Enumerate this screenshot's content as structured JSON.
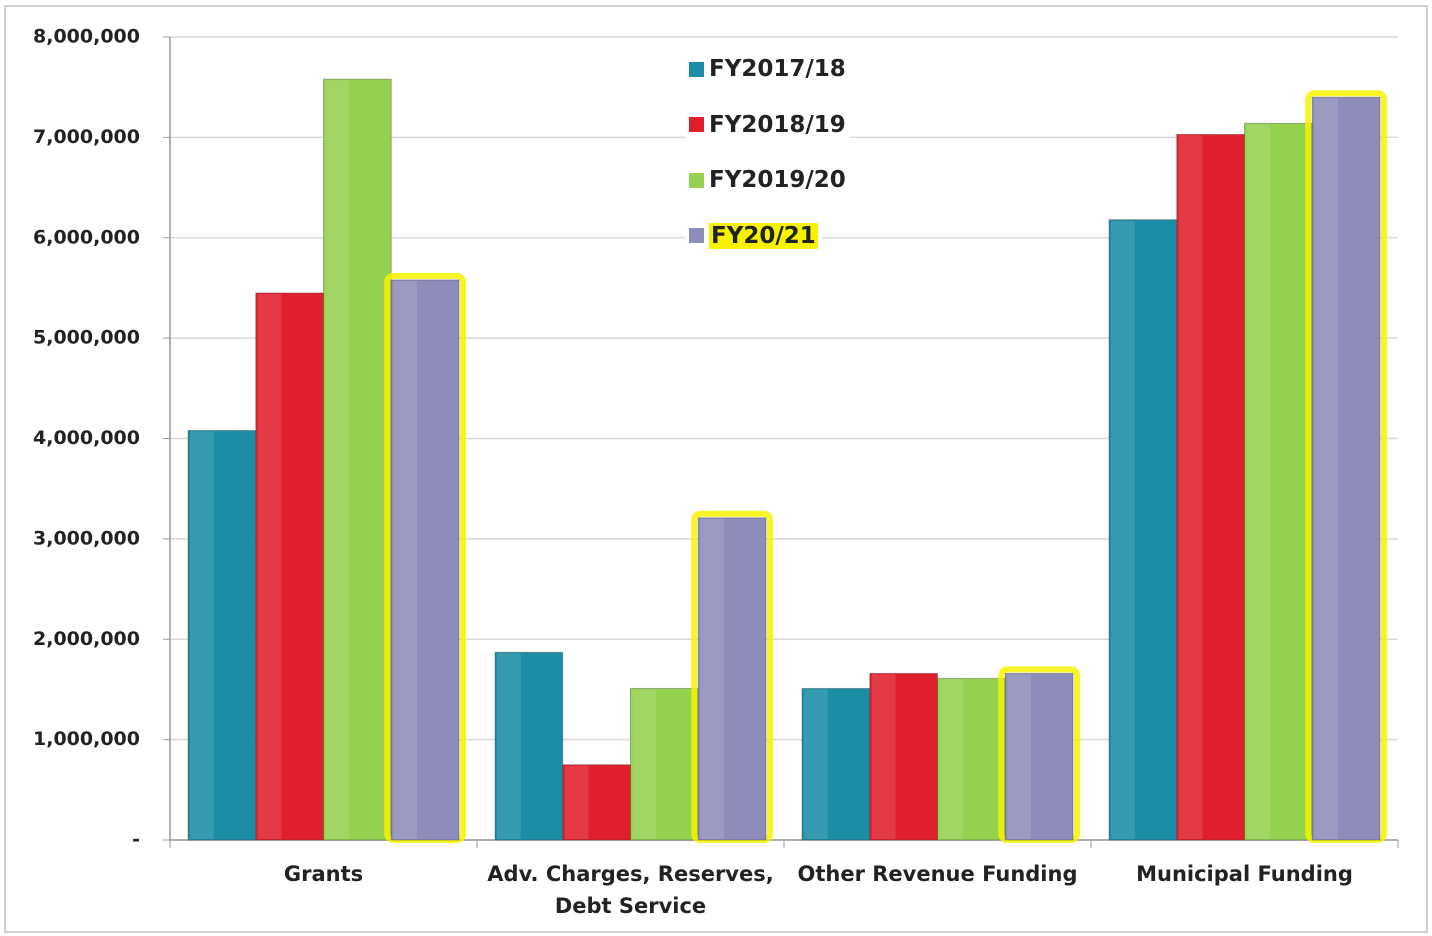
{
  "chart_data": {
    "type": "bar",
    "categories": [
      "Grants",
      "Adv. Charges, Reserves, Debt Service",
      "Other Revenue Funding",
      "Municipal Funding"
    ],
    "series": [
      {
        "name": "FY2017/18",
        "color": "#1b8ea5",
        "values": [
          4080000,
          1870000,
          1510000,
          6180000
        ]
      },
      {
        "name": "FY2018/19",
        "color": "#e01f2d",
        "values": [
          5450000,
          750000,
          1660000,
          7030000
        ]
      },
      {
        "name": "FY2019/20",
        "color": "#94d14f",
        "values": [
          7580000,
          1510000,
          1610000,
          7140000
        ]
      },
      {
        "name": "FY20/21",
        "color": "#8d8cba",
        "highlight": "#f7f200",
        "values": [
          5580000,
          3210000,
          1660000,
          7400000
        ]
      }
    ],
    "ylim": [
      0,
      8000000
    ],
    "yticks": [
      {
        "value": 0,
        "label": "-"
      },
      {
        "value": 1000000,
        "label": "1,000,000"
      },
      {
        "value": 2000000,
        "label": "2,000,000"
      },
      {
        "value": 3000000,
        "label": "3,000,000"
      },
      {
        "value": 4000000,
        "label": "4,000,000"
      },
      {
        "value": 5000000,
        "label": "5,000,000"
      },
      {
        "value": 6000000,
        "label": "6,000,000"
      },
      {
        "value": 7000000,
        "label": "7,000,000"
      },
      {
        "value": 8000000,
        "label": "8,000,000"
      }
    ],
    "grid": true,
    "legend": "top"
  }
}
